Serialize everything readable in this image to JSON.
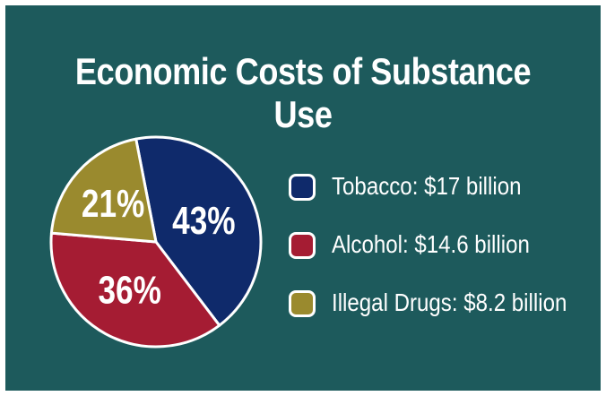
{
  "chart_data": {
    "type": "pie",
    "title": "Economic Costs of Substance Use",
    "slices": [
      {
        "label": "Tobacco",
        "legend": "Tobacco: $17 billion",
        "value": 17,
        "percent_label": "43%",
        "color": "#0f2a6b"
      },
      {
        "label": "Alcohol",
        "legend": "Alcohol: $14.6 billion",
        "value": 14.6,
        "percent_label": "36%",
        "color": "#a51c33"
      },
      {
        "label": "Illegal Drugs",
        "legend": "Illegal Drugs: $8.2 billion",
        "value": 8.2,
        "percent_label": "21%",
        "color": "#9a8a2e"
      }
    ],
    "legend_position": "right"
  },
  "colors": {
    "background": "#1d5a5c",
    "outline": "#ffffff"
  }
}
